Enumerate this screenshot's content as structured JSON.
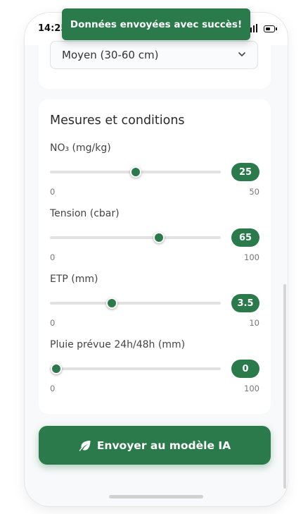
{
  "status_bar": {
    "time": "14:25"
  },
  "toast": {
    "message": "Données envoyées avec succès!"
  },
  "depth_select": {
    "value": "Moyen (30-60 cm)"
  },
  "measures": {
    "title": "Mesures et conditions",
    "fields": [
      {
        "label": "NO₃ (mg/kg)",
        "value": "25",
        "min": "0",
        "max": "50",
        "fraction": 0.5
      },
      {
        "label": "Tension (cbar)",
        "value": "65",
        "min": "0",
        "max": "100",
        "fraction": 0.65
      },
      {
        "label": "ETP (mm)",
        "value": "3.5",
        "min": "0",
        "max": "10",
        "fraction": 0.35
      },
      {
        "label": "Pluie prévue 24h/48h (mm)",
        "value": "0",
        "min": "0",
        "max": "100",
        "fraction": 0.0
      }
    ]
  },
  "submit": {
    "label": "Envoyer au modèle IA",
    "icon": "leaf-icon"
  },
  "colors": {
    "accent": "#2b7a4b",
    "track": "#e2e2e2"
  }
}
